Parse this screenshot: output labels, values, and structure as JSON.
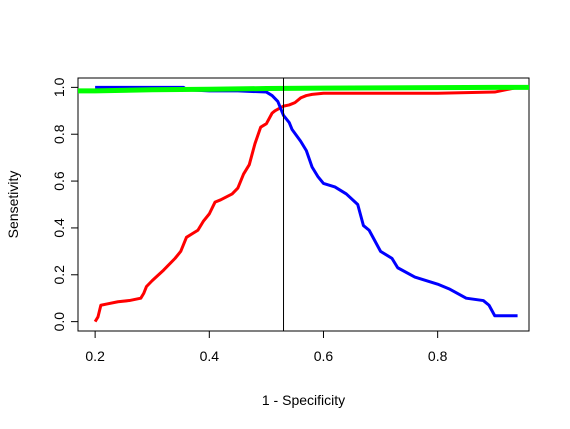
{
  "chart_data": {
    "type": "line",
    "xlabel": "1 - Specificity",
    "ylabel": "Sensetivity",
    "xlim": [
      0.17,
      0.96
    ],
    "ylim": [
      -0.04,
      1.04
    ],
    "x_ticks": [
      0.2,
      0.4,
      0.6,
      0.8
    ],
    "x_tick_labels": [
      "0.2",
      "0.4",
      "0.6",
      "0.8"
    ],
    "y_ticks": [
      0.0,
      0.2,
      0.4,
      0.6,
      0.8,
      1.0
    ],
    "y_tick_labels": [
      "0.0",
      "0.2",
      "0.4",
      "0.6",
      "0.8",
      "1.0"
    ],
    "grid": false,
    "vline_x": 0.53,
    "series": [
      {
        "color": "#ff0000",
        "x": [
          0.2,
          0.205,
          0.21,
          0.22,
          0.24,
          0.26,
          0.28,
          0.285,
          0.29,
          0.3,
          0.32,
          0.34,
          0.35,
          0.36,
          0.37,
          0.38,
          0.39,
          0.4,
          0.41,
          0.42,
          0.44,
          0.45,
          0.46,
          0.47,
          0.48,
          0.49,
          0.5,
          0.51,
          0.515,
          0.53,
          0.54,
          0.55,
          0.56,
          0.57,
          0.58,
          0.6,
          0.7,
          0.8,
          0.9,
          0.94
        ],
        "y": [
          0.0,
          0.02,
          0.07,
          0.075,
          0.085,
          0.09,
          0.1,
          0.12,
          0.15,
          0.175,
          0.22,
          0.27,
          0.3,
          0.36,
          0.375,
          0.39,
          0.43,
          0.46,
          0.51,
          0.52,
          0.545,
          0.57,
          0.63,
          0.67,
          0.76,
          0.83,
          0.845,
          0.89,
          0.9,
          0.92,
          0.925,
          0.935,
          0.955,
          0.965,
          0.97,
          0.975,
          0.975,
          0.975,
          0.98,
          1.0
        ]
      },
      {
        "color": "#0000ff",
        "x": [
          0.2,
          0.25,
          0.3,
          0.355,
          0.36,
          0.4,
          0.45,
          0.5,
          0.51,
          0.52,
          0.53,
          0.54,
          0.545,
          0.56,
          0.57,
          0.58,
          0.59,
          0.6,
          0.62,
          0.64,
          0.66,
          0.67,
          0.68,
          0.7,
          0.72,
          0.73,
          0.76,
          0.8,
          0.82,
          0.85,
          0.88,
          0.89,
          0.9,
          0.94
        ],
        "y": [
          1.0,
          1.0,
          1.0,
          1.0,
          0.99,
          0.985,
          0.985,
          0.98,
          0.965,
          0.94,
          0.88,
          0.85,
          0.82,
          0.77,
          0.73,
          0.66,
          0.62,
          0.59,
          0.575,
          0.545,
          0.5,
          0.41,
          0.39,
          0.3,
          0.27,
          0.23,
          0.19,
          0.16,
          0.14,
          0.1,
          0.09,
          0.07,
          0.025,
          0.025
        ]
      },
      {
        "color": "#00ff00",
        "x": [
          0.17,
          0.2,
          0.3,
          0.4,
          0.5,
          0.6,
          0.7,
          0.8,
          0.9,
          0.96
        ],
        "y": [
          0.985,
          0.985,
          0.99,
          0.992,
          0.995,
          0.997,
          0.998,
          0.999,
          1.0,
          1.0
        ]
      }
    ]
  }
}
